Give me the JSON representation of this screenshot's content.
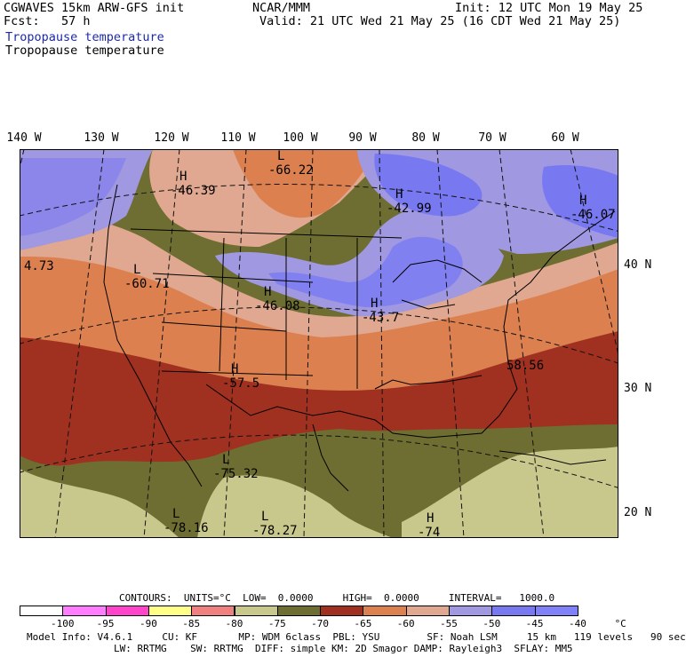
{
  "header": {
    "model_title": "CGWAVES 15km ARW-GFS init",
    "forecast": "Fcst:   57 h",
    "field_1": "Tropopause temperature",
    "field_2": "Tropopause temperature",
    "org": "NCAR/MMM",
    "init": "Init: 12 UTC Mon 19 May 25",
    "valid": "Valid: 21 UTC Wed 21 May 25 (16 CDT Wed 21 May 25)"
  },
  "longitude_labels": [
    "140 W",
    "130 W",
    "120 W",
    "110 W",
    "100 W",
    "90 W",
    "80 W",
    "70 W",
    "60 W"
  ],
  "latitude_labels": [
    "40 N",
    "30 N",
    "20 N"
  ],
  "map_labels": [
    {
      "type": "L",
      "value": "-66.22"
    },
    {
      "type": "H",
      "value": "-46.39"
    },
    {
      "type": "H",
      "value": "-42.99"
    },
    {
      "type": "H",
      "value": "-46.07"
    },
    {
      "type": "",
      "value": "4.73"
    },
    {
      "type": "L",
      "value": "-60.71"
    },
    {
      "type": "H",
      "value": "-46.08"
    },
    {
      "type": "H",
      "value": "-43.7"
    },
    {
      "type": "",
      "value": "58.56"
    },
    {
      "type": "H",
      "value": "-57.5"
    },
    {
      "type": "L",
      "value": "-75.32"
    },
    {
      "type": "L",
      "value": "-78.16"
    },
    {
      "type": "L",
      "value": "-78.27"
    },
    {
      "type": "H",
      "value": "-74"
    }
  ],
  "colorbar": {
    "contours_line": "CONTOURS:  UNITS=°C  LOW=  0.0000     HIGH=  0.0000     INTERVAL=   1000.0",
    "levels": [
      "-100",
      "-95",
      "-90",
      "-85",
      "-80",
      "-75",
      "-70",
      "-65",
      "-60",
      "-55",
      "-50",
      "-45",
      "-40",
      "°C"
    ],
    "colors": [
      "#ffffff",
      "#ff7cff",
      "#ff44cc",
      "#ffff88",
      "#f08080",
      "#c8c88c",
      "#6e6e32",
      "#a03020",
      "#dc8050",
      "#e0a890",
      "#a098e0",
      "#7878f0",
      "#8080f8"
    ]
  },
  "footer": {
    "line1": "Model Info: V4.6.1     CU: KF       MP: WDM 6class  PBL: YSU        SF: Noah LSM     15 km   119 levels   90 sec",
    "line2": "LW: RRTMG    SW: RRTMG  DIFF: simple KM: 2D Smagor DAMP: Rayleigh3  SFLAY: MM5"
  }
}
